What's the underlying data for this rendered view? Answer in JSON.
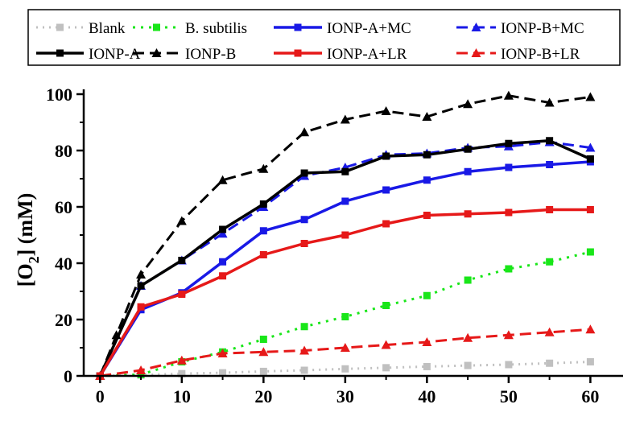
{
  "chart_data": {
    "type": "line",
    "title": "",
    "xlabel": "",
    "ylabel": {
      "prefix": "[O",
      "subscript": "2",
      "suffix": "] (mM)"
    },
    "xlim": [
      -2,
      64
    ],
    "ylim": [
      0,
      100
    ],
    "xticks": [
      0,
      10,
      20,
      30,
      40,
      50,
      60
    ],
    "yticks": [
      0,
      20,
      40,
      60,
      80,
      100
    ],
    "grid": false,
    "legend_position": "top",
    "series": [
      {
        "name": "Blank",
        "color": "#c0c0c0",
        "dash": "2,6",
        "marker": "square",
        "stroke_width": 3,
        "x": [
          0,
          5,
          10,
          15,
          20,
          25,
          30,
          35,
          40,
          45,
          50,
          55,
          60
        ],
        "y": [
          0,
          0.3,
          0.8,
          1.1,
          1.6,
          2.0,
          2.5,
          2.9,
          3.3,
          3.7,
          4.0,
          4.5,
          5.0
        ]
      },
      {
        "name": "B. subtilis",
        "color": "#19e619",
        "dash": "3,7",
        "marker": "square",
        "stroke_width": 3,
        "x": [
          0,
          5,
          10,
          15,
          20,
          25,
          30,
          35,
          40,
          45,
          50,
          55,
          60
        ],
        "y": [
          0,
          0.5,
          5.0,
          8.5,
          13.0,
          17.5,
          21.0,
          25.0,
          28.5,
          34.0,
          38.0,
          40.5,
          44.0
        ]
      },
      {
        "name": "IONP-A+MC",
        "color": "#1919e6",
        "dash": "",
        "marker": "square",
        "stroke_width": 3.5,
        "x": [
          0,
          5,
          10,
          15,
          20,
          25,
          30,
          35,
          40,
          45,
          50,
          55,
          60
        ],
        "y": [
          0,
          23.5,
          29.5,
          40.5,
          51.5,
          55.5,
          62.0,
          66.0,
          69.5,
          72.5,
          74.0,
          75.0,
          76.0
        ]
      },
      {
        "name": "IONP-B+MC",
        "color": "#1919e6",
        "dash": "14,7",
        "marker": "triangle",
        "stroke_width": 3,
        "x": [
          0,
          5,
          10,
          15,
          20,
          25,
          30,
          35,
          40,
          45,
          50,
          55,
          60
        ],
        "y": [
          0,
          32.0,
          41.0,
          50.5,
          60.0,
          71.0,
          74.0,
          78.5,
          79.0,
          81.0,
          81.5,
          83.0,
          81.0
        ]
      },
      {
        "name": "IONP-A",
        "color": "#000000",
        "dash": "",
        "marker": "square",
        "stroke_width": 3.5,
        "x": [
          0,
          5,
          10,
          15,
          20,
          25,
          30,
          35,
          40,
          45,
          50,
          55,
          60
        ],
        "y": [
          0,
          32.0,
          41.0,
          52.0,
          61.0,
          72.0,
          72.5,
          78.0,
          78.5,
          80.5,
          82.5,
          83.5,
          77.0
        ]
      },
      {
        "name": "IONP-B",
        "color": "#000000",
        "dash": "14,7",
        "marker": "triangle",
        "stroke_width": 3,
        "x": [
          0,
          2,
          5,
          10,
          15,
          20,
          25,
          30,
          35,
          40,
          45,
          50,
          55,
          60
        ],
        "y": [
          0,
          14.5,
          36.0,
          55.0,
          69.5,
          73.5,
          86.5,
          91.0,
          94.0,
          92.0,
          96.5,
          99.5,
          97.0,
          99.0
        ]
      },
      {
        "name": "IONP-A+LR",
        "color": "#e61919",
        "dash": "",
        "marker": "square",
        "stroke_width": 3.5,
        "x": [
          0,
          5,
          10,
          15,
          20,
          25,
          30,
          35,
          40,
          45,
          50,
          55,
          60
        ],
        "y": [
          0,
          24.5,
          29.0,
          35.5,
          43.0,
          47.0,
          50.0,
          54.0,
          57.0,
          57.5,
          58.0,
          59.0,
          59.0
        ]
      },
      {
        "name": "IONP-B+LR",
        "color": "#e61919",
        "dash": "14,7",
        "marker": "triangle",
        "stroke_width": 3,
        "x": [
          0,
          5,
          10,
          15,
          20,
          25,
          30,
          35,
          40,
          45,
          50,
          55,
          60
        ],
        "y": [
          0,
          2.0,
          5.5,
          8.0,
          8.5,
          9.0,
          10.0,
          11.0,
          12.0,
          13.5,
          14.5,
          15.5,
          16.5
        ]
      }
    ]
  }
}
